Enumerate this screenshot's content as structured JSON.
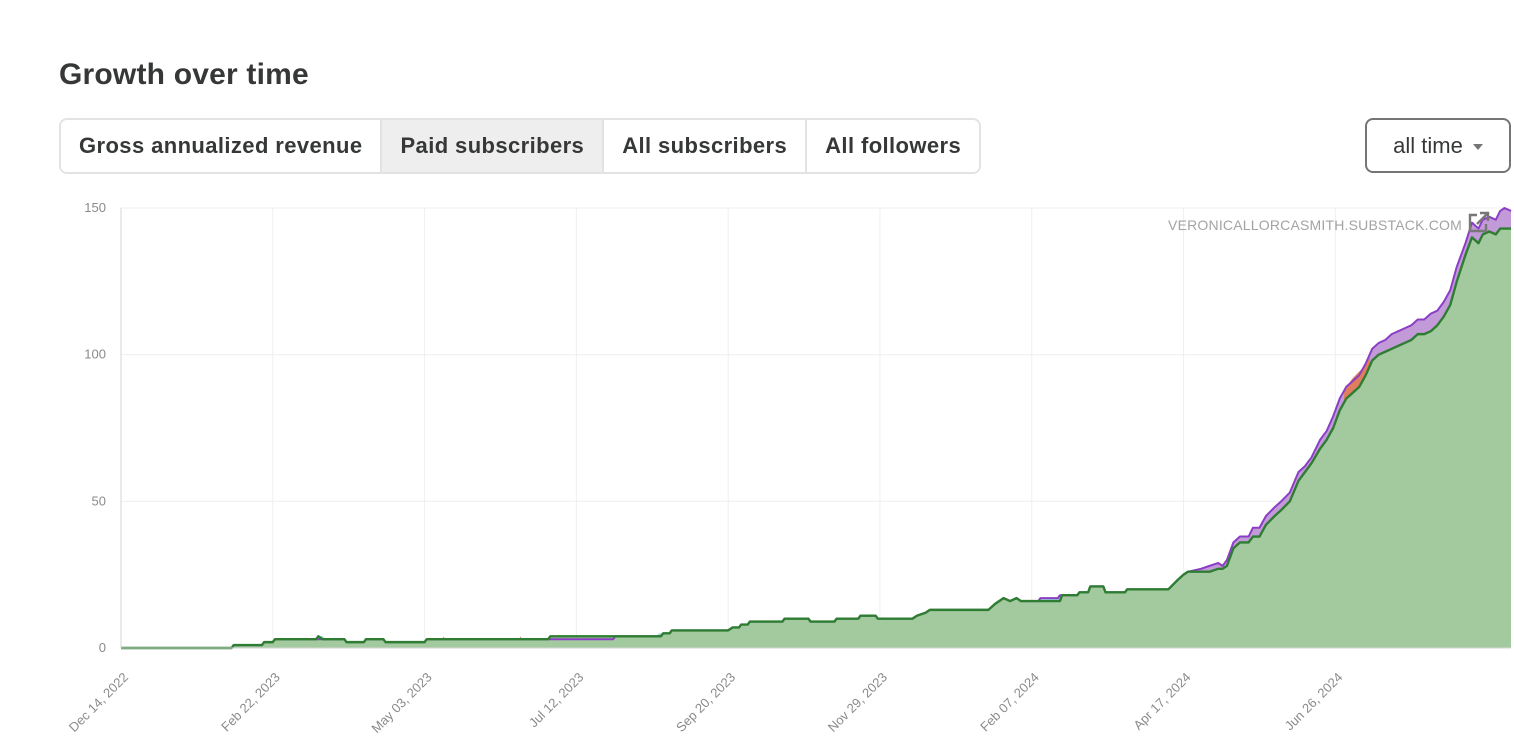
{
  "header": {
    "title": "Growth over time"
  },
  "tabs": [
    {
      "label": "Gross annualized revenue",
      "active": false
    },
    {
      "label": "Paid subscribers",
      "active": true
    },
    {
      "label": "All subscribers",
      "active": false
    },
    {
      "label": "All followers",
      "active": false
    }
  ],
  "range": {
    "selected": "all time"
  },
  "watermark": "VERONICALLORCASMITH.SUBSTACK.COM",
  "icons": {
    "external_link": "external-link-icon",
    "dropdown": "caret-down-icon"
  },
  "colors": {
    "total_line": "#8b3fc4",
    "total_fill": "#c29ad8",
    "monthly_line": "#2e7d32",
    "monthly_fill": "#a3c99f",
    "blue_fill": "#9fd3ea",
    "orange_fill": "#e07d5c"
  },
  "chart_data": {
    "type": "area",
    "title": "",
    "xlabel": "",
    "ylabel": "",
    "x_ticks": [
      "Dec 14, 2022",
      "Feb 22, 2023",
      "May 03, 2023",
      "Jul 12, 2023",
      "Sep 20, 2023",
      "Nov 29, 2023",
      "Feb 07, 2024",
      "Apr 17, 2024",
      "Jun 26, 2024"
    ],
    "xlim": [
      "2022-12-14",
      "2024-09-15"
    ],
    "y_ticks": [
      0,
      50,
      100,
      150
    ],
    "ylim": [
      0,
      150
    ],
    "grid": true,
    "legend": "none",
    "series": [
      {
        "color": "#8b3fc4",
        "points": [
          [
            "2022-12-14",
            0
          ],
          [
            "2023-02-03",
            0
          ],
          [
            "2023-02-04",
            1
          ],
          [
            "2023-02-17",
            1
          ],
          [
            "2023-02-18",
            2
          ],
          [
            "2023-02-22",
            2
          ],
          [
            "2023-02-23",
            3
          ],
          [
            "2023-03-14",
            3
          ],
          [
            "2023-03-15",
            3
          ],
          [
            "2023-03-27",
            3
          ],
          [
            "2023-03-28",
            2
          ],
          [
            "2023-04-05",
            2
          ],
          [
            "2023-04-06",
            3
          ],
          [
            "2023-04-14",
            3
          ],
          [
            "2023-04-15",
            2
          ],
          [
            "2023-05-03",
            2
          ],
          [
            "2023-05-04",
            3
          ],
          [
            "2023-06-29",
            3
          ],
          [
            "2023-06-30",
            3
          ],
          [
            "2023-07-29",
            3
          ],
          [
            "2023-07-30",
            4
          ],
          [
            "2023-08-20",
            4
          ],
          [
            "2023-08-21",
            5
          ],
          [
            "2023-08-24",
            5
          ],
          [
            "2023-08-25",
            6
          ],
          [
            "2023-09-20",
            6
          ],
          [
            "2023-09-22",
            7
          ],
          [
            "2023-09-25",
            7
          ],
          [
            "2023-09-26",
            8
          ],
          [
            "2023-09-29",
            8
          ],
          [
            "2023-09-30",
            9
          ],
          [
            "2023-10-15",
            9
          ],
          [
            "2023-10-16",
            10
          ],
          [
            "2023-10-27",
            10
          ],
          [
            "2023-10-28",
            9
          ],
          [
            "2023-11-08",
            9
          ],
          [
            "2023-11-09",
            10
          ],
          [
            "2023-11-19",
            10
          ],
          [
            "2023-11-20",
            11
          ],
          [
            "2023-11-27",
            11
          ],
          [
            "2023-11-28",
            10
          ],
          [
            "2023-12-14",
            10
          ],
          [
            "2023-12-16",
            11
          ],
          [
            "2023-12-20",
            12
          ],
          [
            "2023-12-22",
            13
          ],
          [
            "2024-01-18",
            13
          ],
          [
            "2024-01-21",
            15
          ],
          [
            "2024-01-25",
            17
          ],
          [
            "2024-01-28",
            16
          ],
          [
            "2024-01-31",
            17
          ],
          [
            "2024-02-02",
            16
          ],
          [
            "2024-02-03",
            16
          ],
          [
            "2024-02-10",
            16
          ],
          [
            "2024-02-11",
            17
          ],
          [
            "2024-02-19",
            17
          ],
          [
            "2024-02-20",
            18
          ],
          [
            "2024-02-28",
            18
          ],
          [
            "2024-02-29",
            19
          ],
          [
            "2024-03-04",
            19
          ],
          [
            "2024-03-05",
            21
          ],
          [
            "2024-03-11",
            21
          ],
          [
            "2024-03-12",
            19
          ],
          [
            "2024-03-21",
            19
          ],
          [
            "2024-03-22",
            20
          ],
          [
            "2024-04-10",
            20
          ],
          [
            "2024-04-14",
            23
          ],
          [
            "2024-04-17",
            25
          ],
          [
            "2024-04-19",
            26
          ],
          [
            "2024-04-25",
            27
          ],
          [
            "2024-04-29",
            28
          ],
          [
            "2024-05-03",
            29
          ],
          [
            "2024-05-05",
            28
          ],
          [
            "2024-05-07",
            30
          ],
          [
            "2024-05-10",
            36
          ],
          [
            "2024-05-13",
            38
          ],
          [
            "2024-05-17",
            38
          ],
          [
            "2024-05-19",
            41
          ],
          [
            "2024-05-22",
            41
          ],
          [
            "2024-05-25",
            45
          ],
          [
            "2024-05-29",
            48
          ],
          [
            "2024-06-01",
            50
          ],
          [
            "2024-06-05",
            53
          ],
          [
            "2024-06-09",
            60
          ],
          [
            "2024-06-12",
            62
          ],
          [
            "2024-06-15",
            65
          ],
          [
            "2024-06-19",
            71
          ],
          [
            "2024-06-22",
            74
          ],
          [
            "2024-06-25",
            79
          ],
          [
            "2024-06-28",
            85
          ],
          [
            "2024-07-01",
            89
          ],
          [
            "2024-07-04",
            91
          ],
          [
            "2024-07-07",
            93
          ],
          [
            "2024-07-10",
            97
          ],
          [
            "2024-07-13",
            102
          ],
          [
            "2024-07-16",
            104
          ],
          [
            "2024-07-19",
            105
          ],
          [
            "2024-07-22",
            107
          ],
          [
            "2024-07-25",
            108
          ],
          [
            "2024-07-28",
            109
          ],
          [
            "2024-07-31",
            110
          ],
          [
            "2024-08-03",
            112
          ],
          [
            "2024-08-06",
            112
          ],
          [
            "2024-08-09",
            114
          ],
          [
            "2024-08-12",
            115
          ],
          [
            "2024-08-15",
            118
          ],
          [
            "2024-08-18",
            122
          ],
          [
            "2024-08-21",
            130
          ],
          [
            "2024-08-25",
            138
          ],
          [
            "2024-08-28",
            145
          ],
          [
            "2024-08-31",
            143
          ],
          [
            "2024-09-02",
            146
          ],
          [
            "2024-09-05",
            147
          ],
          [
            "2024-09-08",
            146
          ],
          [
            "2024-09-10",
            149
          ],
          [
            "2024-09-12",
            150
          ],
          [
            "2024-09-15",
            149
          ]
        ]
      },
      {
        "color": "#2e7d32",
        "points": [
          [
            "2022-12-14",
            0
          ],
          [
            "2023-02-03",
            0
          ],
          [
            "2023-02-04",
            1
          ],
          [
            "2023-02-17",
            1
          ],
          [
            "2023-02-18",
            2
          ],
          [
            "2023-02-22",
            2
          ],
          [
            "2023-02-23",
            3
          ],
          [
            "2023-03-14",
            3
          ],
          [
            "2023-03-15",
            4
          ],
          [
            "2023-03-17",
            3
          ],
          [
            "2023-03-27",
            3
          ],
          [
            "2023-03-28",
            2
          ],
          [
            "2023-04-05",
            2
          ],
          [
            "2023-04-06",
            3
          ],
          [
            "2023-04-14",
            3
          ],
          [
            "2023-04-15",
            2
          ],
          [
            "2023-05-03",
            2
          ],
          [
            "2023-05-04",
            3
          ],
          [
            "2023-06-29",
            3
          ],
          [
            "2023-06-30",
            4
          ],
          [
            "2023-08-20",
            4
          ],
          [
            "2023-08-21",
            5
          ],
          [
            "2023-08-24",
            5
          ],
          [
            "2023-08-25",
            6
          ],
          [
            "2023-09-20",
            6
          ],
          [
            "2023-09-22",
            7
          ],
          [
            "2023-09-25",
            7
          ],
          [
            "2023-09-26",
            8
          ],
          [
            "2023-09-29",
            8
          ],
          [
            "2023-09-30",
            9
          ],
          [
            "2023-10-15",
            9
          ],
          [
            "2023-10-16",
            10
          ],
          [
            "2023-10-27",
            10
          ],
          [
            "2023-10-28",
            9
          ],
          [
            "2023-11-08",
            9
          ],
          [
            "2023-11-09",
            10
          ],
          [
            "2023-11-19",
            10
          ],
          [
            "2023-11-20",
            11
          ],
          [
            "2023-11-27",
            11
          ],
          [
            "2023-11-28",
            10
          ],
          [
            "2023-12-14",
            10
          ],
          [
            "2023-12-16",
            11
          ],
          [
            "2023-12-20",
            12
          ],
          [
            "2023-12-22",
            13
          ],
          [
            "2024-01-18",
            13
          ],
          [
            "2024-01-21",
            15
          ],
          [
            "2024-01-25",
            17
          ],
          [
            "2024-01-28",
            16
          ],
          [
            "2024-01-31",
            17
          ],
          [
            "2024-02-02",
            16
          ],
          [
            "2024-02-20",
            16
          ],
          [
            "2024-02-21",
            18
          ],
          [
            "2024-02-28",
            18
          ],
          [
            "2024-02-29",
            19
          ],
          [
            "2024-03-04",
            19
          ],
          [
            "2024-03-05",
            21
          ],
          [
            "2024-03-11",
            21
          ],
          [
            "2024-03-12",
            19
          ],
          [
            "2024-03-21",
            19
          ],
          [
            "2024-03-22",
            20
          ],
          [
            "2024-04-10",
            20
          ],
          [
            "2024-04-14",
            23
          ],
          [
            "2024-04-17",
            25
          ],
          [
            "2024-04-19",
            26
          ],
          [
            "2024-04-25",
            26
          ],
          [
            "2024-04-29",
            26
          ],
          [
            "2024-05-03",
            27
          ],
          [
            "2024-05-05",
            27
          ],
          [
            "2024-05-07",
            28
          ],
          [
            "2024-05-10",
            34
          ],
          [
            "2024-05-13",
            36
          ],
          [
            "2024-05-17",
            36
          ],
          [
            "2024-05-19",
            38
          ],
          [
            "2024-05-22",
            38
          ],
          [
            "2024-05-25",
            42
          ],
          [
            "2024-05-29",
            45
          ],
          [
            "2024-06-01",
            47
          ],
          [
            "2024-06-05",
            50
          ],
          [
            "2024-06-09",
            57
          ],
          [
            "2024-06-12",
            60
          ],
          [
            "2024-06-15",
            63
          ],
          [
            "2024-06-19",
            68
          ],
          [
            "2024-06-22",
            71
          ],
          [
            "2024-06-25",
            75
          ],
          [
            "2024-06-28",
            81
          ],
          [
            "2024-07-01",
            85
          ],
          [
            "2024-07-04",
            87
          ],
          [
            "2024-07-07",
            89
          ],
          [
            "2024-07-10",
            93
          ],
          [
            "2024-07-13",
            98
          ],
          [
            "2024-07-16",
            100
          ],
          [
            "2024-07-19",
            101
          ],
          [
            "2024-07-22",
            102
          ],
          [
            "2024-07-25",
            103
          ],
          [
            "2024-07-28",
            104
          ],
          [
            "2024-07-31",
            105
          ],
          [
            "2024-08-03",
            107
          ],
          [
            "2024-08-06",
            107
          ],
          [
            "2024-08-09",
            108
          ],
          [
            "2024-08-12",
            110
          ],
          [
            "2024-08-15",
            113
          ],
          [
            "2024-08-18",
            117
          ],
          [
            "2024-08-21",
            125
          ],
          [
            "2024-08-25",
            134
          ],
          [
            "2024-08-28",
            140
          ],
          [
            "2024-08-31",
            138
          ],
          [
            "2024-09-02",
            141
          ],
          [
            "2024-09-05",
            142
          ],
          [
            "2024-09-08",
            141
          ],
          [
            "2024-09-10",
            143
          ],
          [
            "2024-09-12",
            143
          ],
          [
            "2024-09-15",
            143
          ]
        ]
      },
      {
        "color": "#9fd3ea",
        "points": [
          [
            "2023-03-14",
            3
          ],
          [
            "2023-03-15",
            4
          ],
          [
            "2023-03-17",
            4
          ],
          [
            "2023-03-18",
            3
          ],
          [
            "2023-08-18",
            4
          ],
          [
            "2023-08-19",
            5
          ],
          [
            "2023-08-24",
            5
          ],
          [
            "2023-08-25",
            6
          ],
          [
            "2024-02-10",
            16
          ],
          [
            "2024-02-11",
            17
          ],
          [
            "2024-02-19",
            17
          ],
          [
            "2024-02-20",
            16
          ]
        ]
      },
      {
        "color": "#e07d5c",
        "points": [
          [
            "2023-05-04",
            3
          ],
          [
            "2023-05-11",
            3
          ],
          [
            "2023-05-12",
            4
          ],
          [
            "2023-06-16",
            4
          ],
          [
            "2023-06-17",
            3
          ],
          [
            "2024-06-30",
            88
          ],
          [
            "2024-07-04",
            92
          ],
          [
            "2024-07-08",
            95
          ],
          [
            "2024-07-12",
            99
          ]
        ]
      }
    ]
  }
}
